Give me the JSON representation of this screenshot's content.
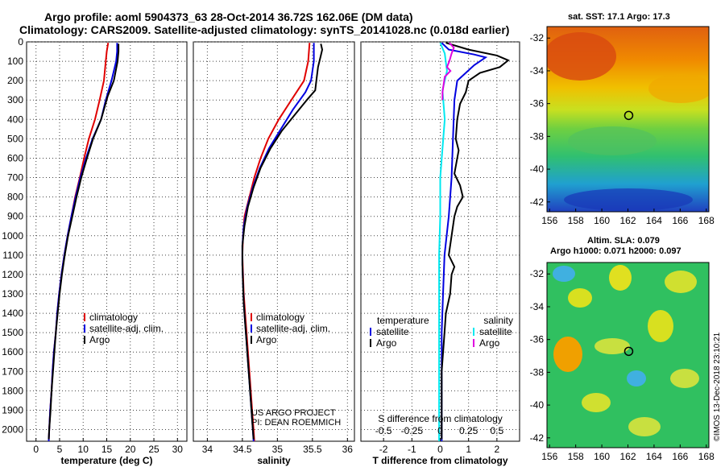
{
  "header": {
    "line1": "Argo profile: aoml 5904373_63 28-Oct-2014 36.72S 162.06E (DM data)",
    "line2": "Climatology: CARS2009. Satellite-adjusted climatology: synTS_20141028.nc (0.018d earlier)"
  },
  "colors": {
    "climatology": "#e00000",
    "satellite": "#0000e0",
    "argo": "#000000",
    "sat_salinity": "#00e8f0",
    "argo_salinity": "#e000e0"
  },
  "depth_ticks": [
    "0",
    "100",
    "200",
    "300",
    "400",
    "500",
    "600",
    "700",
    "800",
    "900",
    "1000",
    "1100",
    "1200",
    "1300",
    "1400",
    "1500",
    "1600",
    "1700",
    "1800",
    "1900",
    "2000"
  ],
  "chart_data": [
    {
      "type": "line",
      "panel": "temperature",
      "xlabel": "temperature (deg C)",
      "xlim": [
        -2,
        32
      ],
      "x_ticks": [
        "0",
        "5",
        "10",
        "15",
        "20",
        "25",
        "30"
      ],
      "ylim": [
        0,
        2060
      ],
      "y_inverted": true,
      "legend": [
        "climatology",
        "satellite-adj. clim.",
        "Argo"
      ],
      "series": [
        {
          "name": "climatology",
          "points": [
            [
              15.3,
              5
            ],
            [
              15.0,
              50
            ],
            [
              14.8,
              100
            ],
            [
              14.4,
              200
            ],
            [
              13.5,
              300
            ],
            [
              12.5,
              400
            ],
            [
              11.2,
              500
            ],
            [
              10.2,
              600
            ],
            [
              9.3,
              700
            ],
            [
              8.3,
              800
            ],
            [
              7.5,
              900
            ],
            [
              6.7,
              1000
            ],
            [
              6.0,
              1100
            ],
            [
              5.4,
              1200
            ],
            [
              4.9,
              1300
            ],
            [
              4.5,
              1400
            ],
            [
              4.2,
              1500
            ],
            [
              3.8,
              1600
            ],
            [
              3.5,
              1700
            ],
            [
              3.3,
              1800
            ],
            [
              3.0,
              1900
            ],
            [
              2.8,
              2000
            ],
            [
              2.7,
              2060
            ]
          ]
        },
        {
          "name": "satellite-adj. clim.",
          "points": [
            [
              17.2,
              5
            ],
            [
              17.2,
              50
            ],
            [
              17.0,
              100
            ],
            [
              16.0,
              200
            ],
            [
              14.8,
              300
            ],
            [
              13.8,
              400
            ],
            [
              12.0,
              500
            ],
            [
              10.6,
              600
            ],
            [
              9.4,
              700
            ],
            [
              8.4,
              800
            ],
            [
              7.5,
              900
            ],
            [
              6.7,
              1000
            ],
            [
              6.0,
              1100
            ],
            [
              5.4,
              1200
            ],
            [
              4.9,
              1300
            ],
            [
              4.5,
              1400
            ],
            [
              4.2,
              1500
            ],
            [
              3.8,
              1600
            ],
            [
              3.5,
              1700
            ],
            [
              3.3,
              1800
            ],
            [
              3.0,
              1900
            ],
            [
              2.8,
              2000
            ],
            [
              2.7,
              2060
            ]
          ]
        },
        {
          "name": "Argo",
          "points": [
            [
              17.5,
              10
            ],
            [
              17.5,
              50
            ],
            [
              17.3,
              100
            ],
            [
              16.5,
              200
            ],
            [
              15.2,
              280
            ],
            [
              13.8,
              400
            ],
            [
              12.1,
              500
            ],
            [
              10.8,
              600
            ],
            [
              9.6,
              700
            ],
            [
              8.6,
              800
            ],
            [
              7.7,
              900
            ],
            [
              6.8,
              1000
            ],
            [
              6.1,
              1100
            ],
            [
              5.5,
              1200
            ],
            [
              5.0,
              1300
            ],
            [
              4.6,
              1400
            ],
            [
              4.2,
              1500
            ],
            [
              3.9,
              1600
            ],
            [
              3.6,
              1700
            ],
            [
              3.3,
              1800
            ],
            [
              3.1,
              1900
            ],
            [
              2.8,
              2000
            ],
            [
              2.7,
              2050
            ]
          ]
        }
      ]
    },
    {
      "type": "line",
      "panel": "salinity",
      "xlabel": "salinity",
      "xlim": [
        33.8,
        36.1
      ],
      "x_ticks": [
        "34",
        "34.5",
        "35",
        "35.5",
        "36"
      ],
      "ylim": [
        0,
        2060
      ],
      "y_inverted": true,
      "legend": [
        "climatology",
        "satellite-adj. clim.",
        "Argo"
      ],
      "annotation": [
        "US ARGO PROJECT",
        "PI: DEAN ROEMMICH"
      ],
      "series": [
        {
          "name": "climatology",
          "points": [
            [
              35.46,
              5
            ],
            [
              35.44,
              100
            ],
            [
              35.38,
              200
            ],
            [
              35.2,
              300
            ],
            [
              35.02,
              400
            ],
            [
              34.87,
              500
            ],
            [
              34.76,
              600
            ],
            [
              34.67,
              700
            ],
            [
              34.6,
              800
            ],
            [
              34.53,
              900
            ],
            [
              34.51,
              1000
            ],
            [
              34.5,
              1100
            ],
            [
              34.51,
              1200
            ],
            [
              34.52,
              1300
            ],
            [
              34.54,
              1400
            ],
            [
              34.56,
              1500
            ],
            [
              34.58,
              1600
            ],
            [
              34.6,
              1700
            ],
            [
              34.62,
              1800
            ],
            [
              34.64,
              1900
            ],
            [
              34.66,
              2000
            ],
            [
              34.67,
              2060
            ]
          ]
        },
        {
          "name": "satellite-adj. clim.",
          "points": [
            [
              35.52,
              5
            ],
            [
              35.52,
              100
            ],
            [
              35.48,
              200
            ],
            [
              35.4,
              260
            ],
            [
              35.22,
              350
            ],
            [
              35.05,
              450
            ],
            [
              34.88,
              550
            ],
            [
              34.75,
              650
            ],
            [
              34.65,
              750
            ],
            [
              34.57,
              850
            ],
            [
              34.52,
              950
            ],
            [
              34.5,
              1050
            ],
            [
              34.5,
              1150
            ],
            [
              34.51,
              1250
            ],
            [
              34.52,
              1350
            ],
            [
              34.54,
              1450
            ],
            [
              34.56,
              1550
            ],
            [
              34.58,
              1650
            ],
            [
              34.6,
              1750
            ],
            [
              34.62,
              1850
            ],
            [
              34.64,
              1950
            ],
            [
              34.66,
              2060
            ]
          ]
        },
        {
          "name": "Argo",
          "points": [
            [
              35.62,
              10
            ],
            [
              35.64,
              40
            ],
            [
              35.62,
              70
            ],
            [
              35.58,
              130
            ],
            [
              35.56,
              190
            ],
            [
              35.54,
              250
            ],
            [
              35.42,
              300
            ],
            [
              35.24,
              380
            ],
            [
              35.06,
              460
            ],
            [
              34.9,
              550
            ],
            [
              34.76,
              650
            ],
            [
              34.66,
              750
            ],
            [
              34.58,
              850
            ],
            [
              34.53,
              950
            ],
            [
              34.5,
              1050
            ],
            [
              34.5,
              1150
            ],
            [
              34.51,
              1250
            ],
            [
              34.52,
              1350
            ],
            [
              34.54,
              1450
            ],
            [
              34.56,
              1550
            ],
            [
              34.58,
              1650
            ],
            [
              34.6,
              1750
            ],
            [
              34.62,
              1850
            ],
            [
              34.64,
              1950
            ],
            [
              34.66,
              2050
            ]
          ]
        }
      ]
    },
    {
      "type": "line",
      "panel": "difference",
      "xlabel": "T difference from climatology",
      "top_label": "S difference from climatology",
      "xlim": [
        -2.8,
        2.8
      ],
      "x_ticks": [
        "-2",
        "-1",
        "0",
        "1",
        "2"
      ],
      "s_ticks": [
        "-0.5",
        "-0.25",
        "0",
        "0.25",
        "0.5"
      ],
      "ylim": [
        0,
        2060
      ],
      "y_inverted": true,
      "legend_temperature": {
        "title": "temperature",
        "items": [
          "satellite",
          "Argo"
        ]
      },
      "legend_salinity": {
        "title": "salinity",
        "items": [
          "satellite",
          "Argo"
        ]
      },
      "series": [
        {
          "name": "temperature satellite",
          "points": [
            [
              0.05,
              5
            ],
            [
              0.3,
              40
            ],
            [
              1.2,
              65
            ],
            [
              1.6,
              80
            ],
            [
              1.2,
              120
            ],
            [
              0.6,
              200
            ],
            [
              0.5,
              300
            ],
            [
              0.45,
              500
            ],
            [
              0.4,
              700
            ],
            [
              0.3,
              900
            ],
            [
              0.15,
              1100
            ],
            [
              0.1,
              1300
            ],
            [
              0.05,
              1500
            ],
            [
              0.05,
              1700
            ],
            [
              0.05,
              1900
            ],
            [
              0.05,
              2060
            ]
          ]
        },
        {
          "name": "temperature Argo",
          "points": [
            [
              0.2,
              5
            ],
            [
              1.0,
              40
            ],
            [
              2.0,
              70
            ],
            [
              2.4,
              95
            ],
            [
              2.1,
              130
            ],
            [
              1.4,
              160
            ],
            [
              1.0,
              200
            ],
            [
              0.9,
              260
            ],
            [
              0.7,
              320
            ],
            [
              0.6,
              400
            ],
            [
              0.55,
              500
            ],
            [
              0.65,
              560
            ],
            [
              0.6,
              600
            ],
            [
              0.5,
              680
            ],
            [
              0.7,
              740
            ],
            [
              0.8,
              800
            ],
            [
              0.6,
              850
            ],
            [
              0.5,
              900
            ],
            [
              0.4,
              1000
            ],
            [
              0.3,
              1100
            ],
            [
              0.5,
              1160
            ],
            [
              0.4,
              1200
            ],
            [
              0.35,
              1300
            ],
            [
              0.2,
              1400
            ],
            [
              0.15,
              1500
            ],
            [
              0.05,
              1700
            ],
            [
              0.05,
              1900
            ],
            [
              0.05,
              2050
            ]
          ]
        },
        {
          "name": "salinity satellite",
          "points": [
            [
              0.0,
              5
            ],
            [
              0.04,
              60
            ],
            [
              0.06,
              150
            ],
            [
              0.02,
              250
            ],
            [
              0.04,
              400
            ],
            [
              0.02,
              550
            ],
            [
              0.0,
              700
            ],
            [
              0.0,
              900
            ],
            [
              -0.01,
              1100
            ],
            [
              -0.01,
              1300
            ],
            [
              -0.01,
              1500
            ],
            [
              -0.01,
              1700
            ],
            [
              -0.01,
              1900
            ],
            [
              -0.01,
              2060
            ]
          ]
        },
        {
          "name": "salinity Argo",
          "points": [
            [
              0.08,
              5
            ],
            [
              0.12,
              30
            ],
            [
              0.1,
              60
            ],
            [
              0.08,
              100
            ],
            [
              0.06,
              130
            ],
            [
              0.09,
              150
            ],
            [
              0.04,
              180
            ],
            [
              0.03,
              220
            ],
            [
              0.02,
              260
            ],
            [
              0.02,
              300
            ]
          ]
        }
      ]
    },
    {
      "type": "heatmap",
      "panel": "map-sst",
      "title": "sat. SST: 17.1  Argo: 17.3",
      "x_ticks": [
        "156",
        "158",
        "160",
        "162",
        "164",
        "166",
        "168"
      ],
      "y_ticks": [
        "-32",
        "-34",
        "-36",
        "-38",
        "-40",
        "-42"
      ],
      "xlim": [
        155.8,
        168.2
      ],
      "ylim": [
        -42.6,
        -31.3
      ],
      "float_position": {
        "lon": 162.06,
        "lat": -36.72
      }
    },
    {
      "type": "heatmap",
      "panel": "map-sla",
      "title_line1": "Altim. SLA: 0.079",
      "title_line2": "Argo h1000: 0.071 h2000: 0.097",
      "x_ticks": [
        "156",
        "158",
        "160",
        "162",
        "164",
        "166",
        "168"
      ],
      "y_ticks": [
        "-32",
        "-34",
        "-36",
        "-38",
        "-40",
        "-42"
      ],
      "xlim": [
        155.8,
        168.2
      ],
      "ylim": [
        -42.6,
        -31.3
      ],
      "float_position": {
        "lon": 162.06,
        "lat": -36.72
      }
    }
  ],
  "side_credit": "©IMOS 13-Dec-2018 23:10:21"
}
